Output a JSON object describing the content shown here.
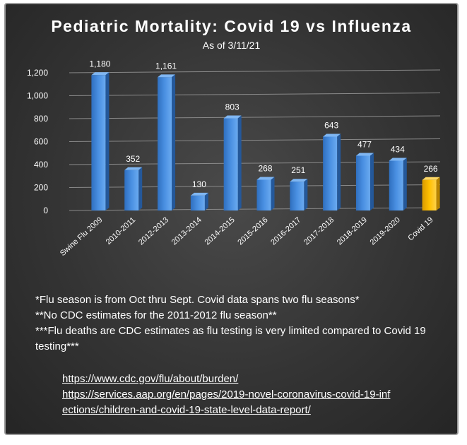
{
  "chart_data": {
    "type": "bar",
    "title": "Pediatric Mortality: Covid 19 vs Influenza",
    "subtitle": "As of 3/11/21",
    "categories": [
      "Swine Flu 2009",
      "2010-2011",
      "2012-2013",
      "2013-2014",
      "2014-2015",
      "2015-2016",
      "2016-2017",
      "2017-2018",
      "2018-2019",
      "2019-2020",
      "Covid 19"
    ],
    "values": [
      1180,
      352,
      1161,
      130,
      803,
      268,
      251,
      643,
      477,
      434,
      266
    ],
    "value_labels": [
      "1,180",
      "352",
      "1,161",
      "130",
      "803",
      "268",
      "251",
      "643",
      "477",
      "434",
      "266"
    ],
    "ylim": [
      0,
      1200
    ],
    "yticks": [
      0,
      200,
      400,
      600,
      800,
      1000,
      1200
    ],
    "ytick_labels": [
      "0",
      "200",
      "400",
      "600",
      "800",
      "1,000",
      "1,200"
    ],
    "grid": true,
    "colors": {
      "default": "#4a90e2",
      "highlight": "#ffc000",
      "background": "#333333",
      "text": "#ffffff"
    },
    "highlight_index": 10
  },
  "notes": [
    "*Flu season is from Oct thru Sept. Covid data spans two flu seasons*",
    "**No CDC estimates for the 2011-2012 flu season**",
    "***Flu deaths are CDC estimates as flu testing is very limited compared to Covid 19 testing***"
  ],
  "links": [
    "https://www.cdc.gov/flu/about/burden/",
    "https://services.aap.org/en/pages/2019-novel-coronavirus-covid-19-infections/children-and-covid-19-state-level-data-report/"
  ]
}
